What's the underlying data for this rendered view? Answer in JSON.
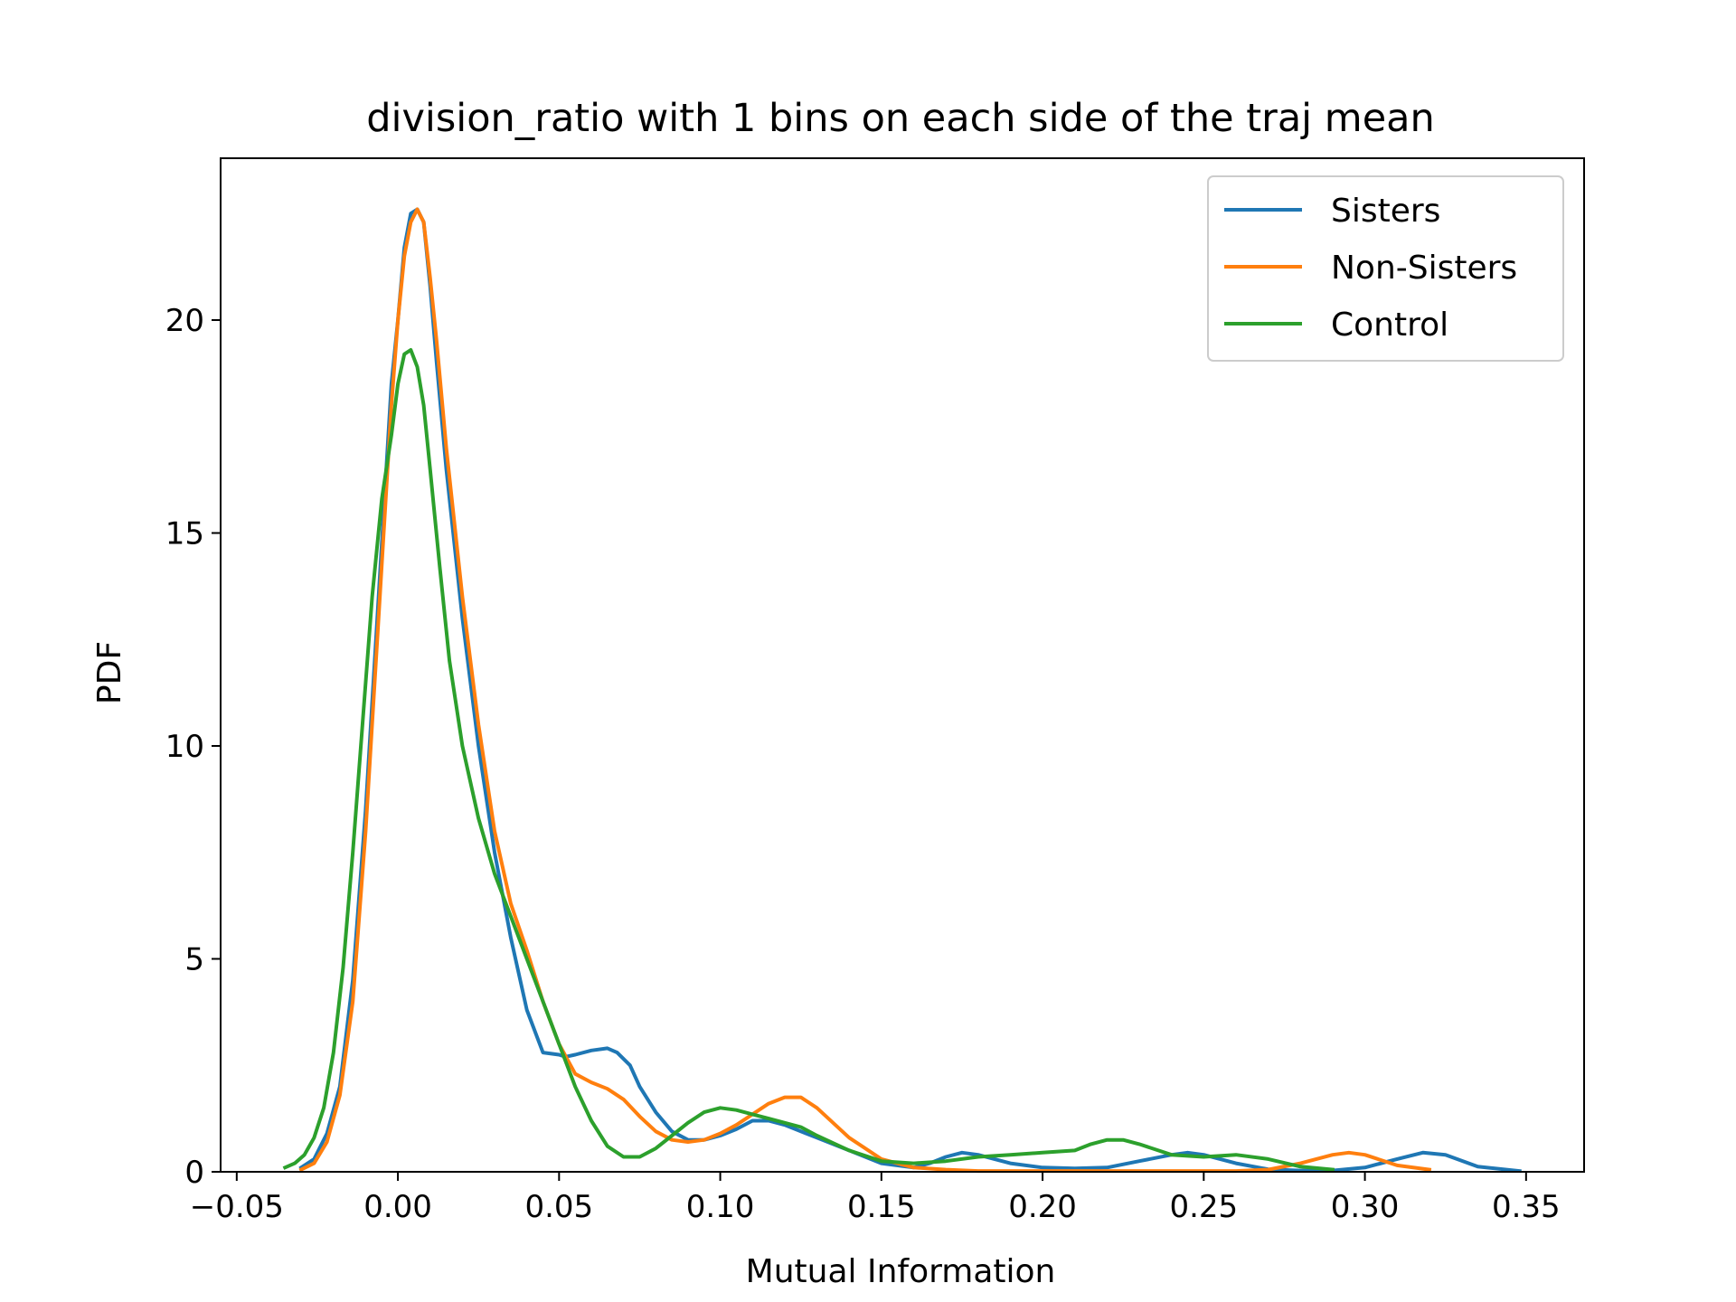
{
  "chart_data": {
    "type": "line",
    "title": "division_ratio with 1 bins on each side of the traj mean",
    "xlabel": "Mutual Information",
    "ylabel": "PDF",
    "xlim": [
      -0.055,
      0.368
    ],
    "ylim": [
      0,
      23.8
    ],
    "xticks": [
      -0.05,
      0.0,
      0.05,
      0.1,
      0.15,
      0.2,
      0.25,
      0.3,
      0.35
    ],
    "xtick_labels": [
      "−0.05",
      "0.00",
      "0.05",
      "0.10",
      "0.15",
      "0.20",
      "0.25",
      "0.30",
      "0.35"
    ],
    "yticks": [
      0,
      5,
      10,
      15,
      20
    ],
    "ytick_labels": [
      "0",
      "5",
      "10",
      "15",
      "20"
    ],
    "grid": false,
    "legend_position": "top-right",
    "series": [
      {
        "name": "Sisters",
        "color": "#1f77b4",
        "x": [
          -0.03,
          -0.026,
          -0.022,
          -0.018,
          -0.014,
          -0.01,
          -0.006,
          -0.002,
          0.0,
          0.002,
          0.004,
          0.006,
          0.008,
          0.01,
          0.012,
          0.015,
          0.02,
          0.025,
          0.03,
          0.035,
          0.04,
          0.045,
          0.05,
          0.052,
          0.055,
          0.06,
          0.065,
          0.068,
          0.072,
          0.075,
          0.08,
          0.085,
          0.09,
          0.095,
          0.1,
          0.105,
          0.11,
          0.115,
          0.12,
          0.13,
          0.14,
          0.15,
          0.16,
          0.165,
          0.17,
          0.175,
          0.18,
          0.19,
          0.2,
          0.21,
          0.22,
          0.23,
          0.24,
          0.245,
          0.25,
          0.26,
          0.27,
          0.28,
          0.29,
          0.3,
          0.31,
          0.318,
          0.325,
          0.335,
          0.348
        ],
        "y": [
          0.1,
          0.3,
          0.9,
          2.0,
          4.5,
          8.5,
          13.5,
          18.5,
          20.0,
          21.7,
          22.5,
          22.6,
          22.3,
          20.8,
          19.0,
          16.5,
          13.0,
          10.0,
          7.5,
          5.5,
          3.8,
          2.8,
          2.75,
          2.7,
          2.75,
          2.85,
          2.9,
          2.8,
          2.5,
          2.0,
          1.4,
          0.95,
          0.75,
          0.75,
          0.85,
          1.0,
          1.2,
          1.2,
          1.1,
          0.8,
          0.5,
          0.2,
          0.1,
          0.2,
          0.35,
          0.45,
          0.4,
          0.2,
          0.1,
          0.08,
          0.1,
          0.25,
          0.4,
          0.45,
          0.4,
          0.2,
          0.06,
          0.03,
          0.03,
          0.1,
          0.3,
          0.45,
          0.4,
          0.12,
          0.02
        ]
      },
      {
        "name": "Non-Sisters",
        "color": "#ff7f0e",
        "x": [
          -0.03,
          -0.026,
          -0.022,
          -0.018,
          -0.014,
          -0.01,
          -0.006,
          -0.002,
          0.0,
          0.002,
          0.004,
          0.006,
          0.008,
          0.01,
          0.012,
          0.015,
          0.02,
          0.025,
          0.03,
          0.035,
          0.04,
          0.045,
          0.05,
          0.055,
          0.06,
          0.065,
          0.07,
          0.075,
          0.08,
          0.085,
          0.09,
          0.095,
          0.1,
          0.105,
          0.11,
          0.115,
          0.12,
          0.125,
          0.13,
          0.14,
          0.15,
          0.16,
          0.17,
          0.18,
          0.2,
          0.22,
          0.24,
          0.26,
          0.27,
          0.28,
          0.29,
          0.295,
          0.3,
          0.31,
          0.32
        ],
        "y": [
          0.05,
          0.2,
          0.7,
          1.8,
          4.0,
          8.0,
          13.0,
          18.0,
          20.0,
          21.5,
          22.3,
          22.6,
          22.3,
          21.0,
          19.5,
          17.0,
          13.5,
          10.5,
          8.0,
          6.3,
          5.2,
          4.0,
          3.0,
          2.3,
          2.1,
          1.95,
          1.7,
          1.3,
          0.95,
          0.75,
          0.7,
          0.75,
          0.9,
          1.1,
          1.35,
          1.6,
          1.75,
          1.75,
          1.5,
          0.8,
          0.3,
          0.1,
          0.05,
          0.02,
          0.02,
          0.02,
          0.02,
          0.02,
          0.05,
          0.2,
          0.4,
          0.45,
          0.4,
          0.15,
          0.05
        ]
      },
      {
        "name": "Control",
        "color": "#2ca02c",
        "x": [
          -0.035,
          -0.032,
          -0.029,
          -0.026,
          -0.023,
          -0.02,
          -0.017,
          -0.014,
          -0.011,
          -0.008,
          -0.005,
          -0.002,
          0.0,
          0.002,
          0.004,
          0.006,
          0.008,
          0.01,
          0.013,
          0.016,
          0.02,
          0.025,
          0.03,
          0.035,
          0.04,
          0.045,
          0.05,
          0.055,
          0.06,
          0.065,
          0.07,
          0.075,
          0.08,
          0.085,
          0.09,
          0.095,
          0.1,
          0.105,
          0.11,
          0.115,
          0.12,
          0.125,
          0.13,
          0.14,
          0.15,
          0.16,
          0.17,
          0.18,
          0.19,
          0.2,
          0.21,
          0.215,
          0.22,
          0.225,
          0.23,
          0.24,
          0.25,
          0.26,
          0.27,
          0.28,
          0.29
        ],
        "y": [
          0.1,
          0.2,
          0.4,
          0.8,
          1.5,
          2.8,
          4.8,
          7.5,
          10.5,
          13.5,
          15.8,
          17.3,
          18.5,
          19.2,
          19.3,
          18.9,
          18.0,
          16.5,
          14.2,
          12.0,
          10.0,
          8.3,
          7.0,
          6.0,
          5.0,
          4.0,
          3.0,
          2.0,
          1.2,
          0.6,
          0.35,
          0.35,
          0.55,
          0.85,
          1.15,
          1.4,
          1.5,
          1.45,
          1.35,
          1.25,
          1.15,
          1.05,
          0.85,
          0.5,
          0.25,
          0.2,
          0.25,
          0.35,
          0.4,
          0.45,
          0.5,
          0.65,
          0.75,
          0.75,
          0.65,
          0.4,
          0.35,
          0.4,
          0.3,
          0.12,
          0.05
        ]
      }
    ]
  }
}
